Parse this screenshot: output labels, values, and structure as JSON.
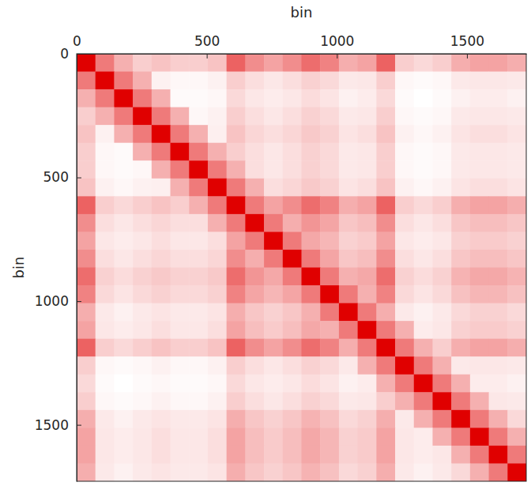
{
  "chart_data": {
    "type": "heatmap",
    "xlabel": "bin",
    "ylabel": "bin",
    "color": "#e00000",
    "xlim": [
      0,
      1728
    ],
    "ylim": [
      0,
      1728
    ],
    "xticks": [
      0,
      500,
      1000,
      1500
    ],
    "yticks": [
      0,
      500,
      1000,
      1500
    ],
    "bins": [
      0,
      72,
      144,
      216,
      288,
      360,
      432,
      504,
      576,
      648,
      720,
      792,
      864,
      936,
      1008,
      1080,
      1152,
      1224,
      1296,
      1368,
      1440,
      1512,
      1584,
      1656,
      1728
    ],
    "cells": [
      [
        100,
        55,
        35,
        24,
        28,
        24,
        24,
        28,
        64,
        48,
        40,
        48,
        60,
        52,
        36,
        40,
        64,
        24,
        20,
        24,
        36,
        40,
        40,
        36
      ],
      [
        55,
        100,
        55,
        35,
        11,
        9,
        9,
        11,
        24,
        18,
        15,
        18,
        23,
        20,
        14,
        15,
        24,
        9,
        8,
        9,
        14,
        15,
        15,
        14
      ],
      [
        35,
        55,
        100,
        55,
        35,
        8,
        8,
        9,
        20,
        15,
        13,
        15,
        19,
        16,
        11,
        13,
        20,
        8,
        6,
        8,
        11,
        13,
        13,
        11
      ],
      [
        24,
        35,
        55,
        100,
        55,
        35,
        9,
        11,
        24,
        18,
        15,
        18,
        23,
        20,
        14,
        15,
        24,
        9,
        8,
        9,
        14,
        15,
        15,
        14
      ],
      [
        28,
        11,
        35,
        55,
        100,
        55,
        35,
        12,
        28,
        21,
        18,
        21,
        26,
        23,
        16,
        18,
        28,
        11,
        9,
        11,
        16,
        18,
        18,
        16
      ],
      [
        24,
        9,
        8,
        35,
        55,
        100,
        55,
        35,
        24,
        18,
        15,
        18,
        23,
        20,
        14,
        15,
        24,
        9,
        8,
        9,
        14,
        15,
        15,
        14
      ],
      [
        24,
        9,
        8,
        9,
        35,
        55,
        100,
        55,
        35,
        18,
        15,
        18,
        23,
        20,
        14,
        15,
        24,
        9,
        8,
        9,
        14,
        15,
        15,
        14
      ],
      [
        28,
        11,
        9,
        11,
        12,
        35,
        55,
        100,
        55,
        35,
        18,
        21,
        26,
        23,
        16,
        18,
        28,
        11,
        9,
        11,
        16,
        18,
        18,
        16
      ],
      [
        64,
        24,
        20,
        24,
        28,
        24,
        35,
        55,
        100,
        55,
        40,
        48,
        60,
        52,
        36,
        40,
        64,
        24,
        20,
        24,
        36,
        40,
        40,
        36
      ],
      [
        48,
        18,
        15,
        18,
        21,
        18,
        18,
        35,
        55,
        100,
        55,
        36,
        45,
        39,
        27,
        30,
        48,
        18,
        15,
        18,
        27,
        30,
        30,
        27
      ],
      [
        40,
        15,
        13,
        15,
        18,
        15,
        15,
        18,
        40,
        55,
        100,
        55,
        38,
        33,
        23,
        25,
        40,
        15,
        13,
        15,
        23,
        25,
        25,
        23
      ],
      [
        48,
        18,
        15,
        18,
        21,
        18,
        18,
        21,
        48,
        36,
        55,
        100,
        55,
        39,
        27,
        30,
        48,
        18,
        15,
        18,
        27,
        30,
        30,
        27
      ],
      [
        60,
        23,
        19,
        23,
        26,
        23,
        23,
        26,
        60,
        45,
        38,
        55,
        100,
        55,
        35,
        38,
        60,
        23,
        19,
        23,
        34,
        38,
        38,
        34
      ],
      [
        52,
        20,
        16,
        20,
        23,
        20,
        20,
        23,
        52,
        39,
        33,
        39,
        55,
        100,
        55,
        35,
        52,
        20,
        16,
        20,
        29,
        33,
        33,
        29
      ],
      [
        36,
        14,
        11,
        14,
        16,
        14,
        14,
        16,
        36,
        27,
        23,
        27,
        35,
        55,
        100,
        55,
        36,
        14,
        11,
        14,
        20,
        23,
        23,
        20
      ],
      [
        40,
        15,
        13,
        15,
        18,
        15,
        15,
        18,
        40,
        30,
        25,
        30,
        38,
        35,
        55,
        100,
        55,
        35,
        13,
        15,
        23,
        25,
        25,
        23
      ],
      [
        64,
        24,
        20,
        24,
        28,
        24,
        24,
        28,
        64,
        48,
        40,
        48,
        60,
        52,
        36,
        55,
        100,
        55,
        35,
        24,
        36,
        40,
        40,
        36
      ],
      [
        24,
        9,
        8,
        9,
        11,
        9,
        9,
        11,
        24,
        18,
        15,
        18,
        23,
        20,
        14,
        35,
        55,
        100,
        55,
        35,
        14,
        15,
        15,
        14
      ],
      [
        20,
        8,
        6,
        8,
        9,
        8,
        8,
        9,
        20,
        15,
        13,
        15,
        19,
        16,
        11,
        13,
        35,
        55,
        100,
        55,
        35,
        13,
        13,
        11
      ],
      [
        24,
        9,
        8,
        9,
        11,
        9,
        9,
        11,
        24,
        18,
        15,
        18,
        23,
        20,
        14,
        15,
        24,
        35,
        55,
        100,
        55,
        35,
        15,
        14
      ],
      [
        36,
        14,
        11,
        14,
        16,
        14,
        14,
        16,
        36,
        27,
        23,
        27,
        34,
        29,
        20,
        23,
        36,
        14,
        35,
        55,
        100,
        55,
        35,
        20
      ],
      [
        40,
        15,
        13,
        15,
        18,
        15,
        15,
        18,
        40,
        30,
        25,
        30,
        38,
        33,
        23,
        25,
        40,
        15,
        13,
        35,
        55,
        100,
        55,
        35
      ],
      [
        40,
        15,
        13,
        15,
        18,
        15,
        15,
        18,
        40,
        30,
        25,
        30,
        38,
        33,
        23,
        25,
        40,
        15,
        13,
        15,
        35,
        55,
        100,
        55
      ],
      [
        36,
        14,
        11,
        14,
        16,
        14,
        14,
        16,
        36,
        27,
        23,
        27,
        34,
        29,
        20,
        23,
        36,
        14,
        11,
        14,
        20,
        35,
        55,
        100
      ]
    ]
  }
}
